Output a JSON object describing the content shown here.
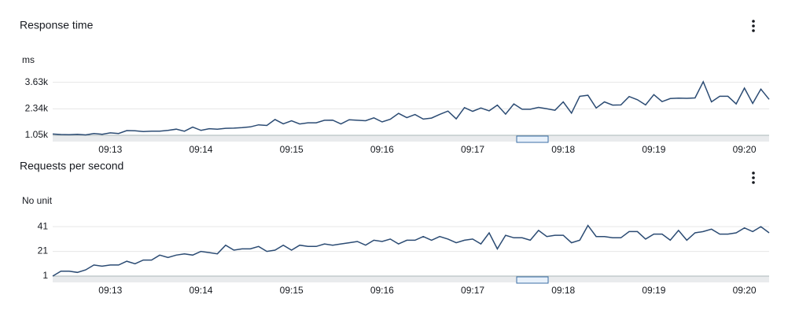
{
  "chart_data": [
    {
      "type": "line",
      "title": "Response time",
      "unit": "ms",
      "color": "#2b4b73",
      "grid": true,
      "categories": [
        null,
        null,
        null,
        null,
        null,
        null,
        null,
        "09:13",
        null,
        null,
        null,
        null,
        null,
        null,
        null,
        null,
        null,
        null,
        "09:14",
        null,
        null,
        null,
        null,
        null,
        null,
        null,
        null,
        null,
        null,
        "09:15",
        null,
        null,
        null,
        null,
        null,
        null,
        null,
        null,
        null,
        null,
        "09:16",
        null,
        null,
        null,
        null,
        null,
        null,
        null,
        null,
        null,
        null,
        "09:17",
        null,
        null,
        null,
        null,
        null,
        null,
        null,
        null,
        null,
        null,
        "09:18",
        null,
        null,
        null,
        null,
        null,
        null,
        null,
        null,
        null,
        null,
        "09:19",
        null,
        null,
        null,
        null,
        null,
        null,
        null,
        null,
        null,
        null,
        "09:20",
        null,
        null,
        null
      ],
      "values": [
        1110,
        1090,
        1080,
        1100,
        1070,
        1140,
        1100,
        1170,
        1140,
        1280,
        1270,
        1230,
        1250,
        1250,
        1290,
        1350,
        1250,
        1450,
        1290,
        1370,
        1350,
        1390,
        1400,
        1420,
        1460,
        1560,
        1530,
        1820,
        1610,
        1760,
        1600,
        1660,
        1660,
        1780,
        1790,
        1600,
        1810,
        1780,
        1760,
        1900,
        1700,
        1830,
        2120,
        1910,
        2060,
        1840,
        1890,
        2070,
        2230,
        1850,
        2400,
        2220,
        2380,
        2240,
        2520,
        2080,
        2580,
        2320,
        2320,
        2410,
        2340,
        2270,
        2680,
        2130,
        2950,
        3000,
        2380,
        2680,
        2520,
        2530,
        2940,
        2780,
        2530,
        3030,
        2690,
        2840,
        2860,
        2850,
        2870,
        3660,
        2680,
        2950,
        2950,
        2580,
        3350,
        2600,
        3300,
        2800
      ],
      "ylim": [
        1050,
        4000
      ],
      "yticks": [
        {
          "value": 1050,
          "label": "1.05k"
        },
        {
          "value": 2340,
          "label": "2.34k"
        },
        {
          "value": 3630,
          "label": "3.63k"
        }
      ]
    },
    {
      "type": "line",
      "title": "Requests per second",
      "unit": "No unit",
      "color": "#2b4b73",
      "grid": true,
      "categories": [
        null,
        null,
        null,
        null,
        null,
        null,
        null,
        "09:13",
        null,
        null,
        null,
        null,
        null,
        null,
        null,
        null,
        null,
        null,
        "09:14",
        null,
        null,
        null,
        null,
        null,
        null,
        null,
        null,
        null,
        null,
        "09:15",
        null,
        null,
        null,
        null,
        null,
        null,
        null,
        null,
        null,
        null,
        "09:16",
        null,
        null,
        null,
        null,
        null,
        null,
        null,
        null,
        null,
        null,
        "09:17",
        null,
        null,
        null,
        null,
        null,
        null,
        null,
        null,
        null,
        null,
        "09:18",
        null,
        null,
        null,
        null,
        null,
        null,
        null,
        null,
        null,
        null,
        "09:19",
        null,
        null,
        null,
        null,
        null,
        null,
        null,
        null,
        null,
        null,
        "09:20",
        null,
        null,
        null
      ],
      "values": [
        1,
        5,
        5,
        4,
        6,
        10,
        9,
        10,
        10,
        13,
        11,
        14,
        14,
        18,
        16,
        18,
        19,
        18,
        21,
        20,
        19,
        26,
        22,
        23,
        23,
        25,
        21,
        22,
        26,
        22,
        26,
        25,
        25,
        27,
        26,
        27,
        28,
        29,
        26,
        30,
        29,
        31,
        27,
        30,
        30,
        33,
        30,
        33,
        31,
        28,
        30,
        31,
        27,
        36,
        23,
        34,
        32,
        32,
        30,
        38,
        33,
        34,
        34,
        28,
        30,
        42,
        33,
        33,
        32,
        32,
        37,
        37,
        31,
        35,
        35,
        30,
        38,
        30,
        36,
        37,
        39,
        35,
        35,
        36,
        40,
        37,
        41,
        36
      ],
      "ylim": [
        1,
        50
      ],
      "yticks": [
        1,
        21,
        41
      ]
    }
  ]
}
